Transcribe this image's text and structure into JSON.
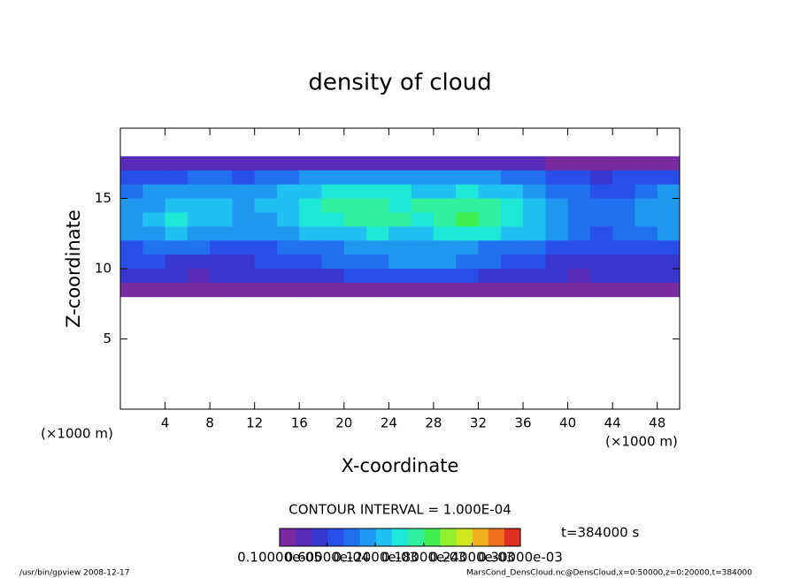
{
  "chart_data": {
    "type": "heatmap",
    "title": "density of cloud",
    "xlabel": "X-coordinate",
    "ylabel": "Z-coordinate",
    "xunit": "(×1000 m)",
    "yunit": "(×1000 m)",
    "xlim": [
      0,
      50
    ],
    "ylim": [
      0,
      20
    ],
    "xticks": [
      4,
      8,
      12,
      16,
      20,
      24,
      28,
      32,
      36,
      40,
      44,
      48
    ],
    "yticks": [
      5,
      10,
      15
    ],
    "xbins": [
      0,
      2,
      4,
      6,
      8,
      10,
      12,
      14,
      16,
      18,
      20,
      22,
      24,
      26,
      28,
      30,
      32,
      34,
      36,
      38,
      40,
      42,
      44,
      46,
      48,
      50
    ],
    "zbins": [
      18,
      17,
      16,
      15,
      14,
      13,
      12,
      11,
      10,
      9,
      8
    ],
    "values": [
      [
        3e-05,
        3e-05,
        3e-05,
        3e-05,
        4e-05,
        3e-05,
        3e-05,
        3e-05,
        4e-05,
        4e-05,
        3e-05,
        4e-05,
        4e-05,
        4e-05,
        3e-05,
        4e-05,
        4e-05,
        3e-05,
        3e-05,
        2e-05,
        2e-05,
        2e-05,
        2e-05,
        2e-05,
        2e-05
      ],
      [
        7e-05,
        8e-05,
        8e-05,
        9e-05,
        9e-05,
        8e-05,
        9e-05,
        0.0001,
        0.00011,
        0.00012,
        0.00011,
        0.00012,
        0.00012,
        0.00011,
        0.00011,
        0.00012,
        0.00011,
        0.0001,
        9e-05,
        8e-05,
        7e-05,
        6e-05,
        7e-05,
        7e-05,
        8e-05
      ],
      [
        0.0001,
        0.00011,
        0.00012,
        0.00011,
        0.00012,
        0.00011,
        0.00012,
        0.00013,
        0.00014,
        0.00015,
        0.00016,
        0.00015,
        0.00015,
        0.00014,
        0.00014,
        0.00015,
        0.00014,
        0.00013,
        0.00011,
        0.0001,
        9e-05,
        8e-05,
        8e-05,
        9e-05,
        0.00011
      ],
      [
        0.00011,
        0.00012,
        0.00014,
        0.00013,
        0.00013,
        0.00012,
        0.00013,
        0.00014,
        0.00016,
        0.00017,
        0.00018,
        0.00017,
        0.00016,
        0.00017,
        0.00018,
        0.00018,
        0.00017,
        0.00015,
        0.00013,
        0.00011,
        0.0001,
        9e-05,
        0.0001,
        0.00011,
        0.00012
      ],
      [
        0.00012,
        0.00013,
        0.00015,
        0.00014,
        0.00013,
        0.00012,
        0.00012,
        0.00013,
        0.00015,
        0.00016,
        0.00017,
        0.00018,
        0.00017,
        0.00016,
        0.00018,
        0.00019,
        0.00018,
        0.00016,
        0.00014,
        0.00012,
        0.0001,
        9e-05,
        0.0001,
        0.00011,
        0.00012
      ],
      [
        0.00011,
        0.00012,
        0.00013,
        0.00012,
        0.00011,
        0.00011,
        0.00011,
        0.00012,
        0.00013,
        0.00014,
        0.00014,
        0.00015,
        0.00014,
        0.00014,
        0.00015,
        0.00016,
        0.00015,
        0.00014,
        0.00013,
        0.00011,
        9e-05,
        8e-05,
        9e-05,
        0.0001,
        0.00011
      ],
      [
        8e-05,
        9e-05,
        9e-05,
        9e-05,
        8e-05,
        8e-05,
        8e-05,
        9e-05,
        0.0001,
        0.0001,
        0.00011,
        0.00011,
        0.00011,
        0.00011,
        0.00011,
        0.00011,
        0.0001,
        0.0001,
        9e-05,
        8e-05,
        7e-05,
        7e-05,
        7e-05,
        8e-05,
        8e-05
      ],
      [
        7e-05,
        7e-05,
        6e-05,
        6e-05,
        6e-05,
        6e-05,
        7e-05,
        7e-05,
        8e-05,
        9e-05,
        0.0001,
        0.0001,
        0.00011,
        0.00011,
        0.00011,
        0.0001,
        9e-05,
        8e-05,
        7e-05,
        6e-05,
        6e-05,
        6e-05,
        6e-05,
        6e-05,
        6e-05
      ],
      [
        5e-05,
        5e-05,
        5e-05,
        4e-05,
        5e-05,
        5e-05,
        5e-05,
        5e-05,
        6e-05,
        6e-05,
        7e-05,
        7e-05,
        7e-05,
        7e-05,
        7e-05,
        7e-05,
        6e-05,
        6e-05,
        5e-05,
        5e-05,
        4e-05,
        5e-05,
        5e-05,
        5e-05,
        5e-05
      ],
      [
        2e-05,
        2e-05,
        2e-05,
        2e-05,
        2e-05,
        2e-05,
        2e-05,
        2e-05,
        2e-05,
        2e-05,
        2e-05,
        2e-05,
        2e-05,
        2e-05,
        2e-05,
        2e-05,
        2e-05,
        2e-05,
        2e-05,
        2e-05,
        2e-05,
        2e-05,
        2e-05,
        2e-05,
        2e-05
      ]
    ],
    "colors": [
      "#7a2aa0",
      "#5a2ab8",
      "#3838d0",
      "#2850e8",
      "#2070f0",
      "#2098f0",
      "#20c0f0",
      "#20e8d8",
      "#30f0a0",
      "#40f050",
      "#90f030",
      "#d0e820",
      "#f0b020",
      "#f07020",
      "#e03020"
    ],
    "clim": [
      1e-06,
      0.0003
    ],
    "colorbar_ticks": [
      {
        "value": 1e-06,
        "label": "0.10000e-05"
      },
      {
        "value": 6e-05,
        "label": "0.60000e-04"
      },
      {
        "value": 0.00012,
        "label": "0.12000e-03"
      },
      {
        "value": 0.00018,
        "label": "0.18000e-03"
      },
      {
        "value": 0.00024,
        "label": "0.24000e-03"
      },
      {
        "value": 0.0003,
        "label": "0.30000e-03"
      }
    ],
    "contour_interval": "CONTOUR INTERVAL = 1.000E-04",
    "time_label": "t=384000 s",
    "footer_left": "/usr/bin/gpview  2008-12-17",
    "footer_right": "MarsCond_DensCloud.nc@DensCloud,x=0:50000,z=0:20000,t=384000"
  }
}
